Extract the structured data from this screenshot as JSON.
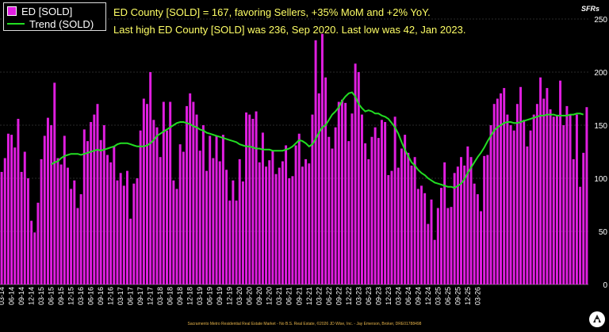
{
  "legend": {
    "bar_label": "ED [SOLD]",
    "line_label": "Trend (SOLD)"
  },
  "headline": {
    "line1": "ED County [SOLD] = 167, favoring Sellers, +35% MoM and +2% YoY.",
    "line2": "Last high ED County [SOLD] was 236, Sep 2020. Last low was 42, Jan 2023."
  },
  "unit_label": "SFRs",
  "footer": "Sacramento Metro Residential Real Estate Market - No B.S. Real Estate, ©2026 JD Wise, Inc. - Jay Emerson, Broker, DRE01788498",
  "colors": {
    "bar": "#e01ee0",
    "trend": "#22dd22",
    "background": "#000000",
    "grid": "#555555",
    "headline": "#ffff66"
  },
  "chart_data": {
    "type": "bar",
    "ylim": [
      0,
      250
    ],
    "yticks": [
      0,
      50,
      100,
      150,
      200,
      250
    ],
    "y_axis_side": "right",
    "grid": true,
    "legend_placement": "top-left",
    "tick_labels": [
      "03-14",
      "06-14",
      "09-14",
      "12-14",
      "03-15",
      "06-15",
      "09-15",
      "12-15",
      "03-16",
      "06-16",
      "09-16",
      "12-16",
      "03-17",
      "06-17",
      "09-17",
      "12-17",
      "03-18",
      "06-18",
      "09-18",
      "12-18",
      "03-19",
      "06-19",
      "09-19",
      "12-19",
      "03-20",
      "06-20",
      "09-20",
      "12-20",
      "03-21",
      "06-21",
      "09-21",
      "12-21",
      "03-22",
      "06-22",
      "09-22",
      "12-22",
      "03-23",
      "06-23",
      "09-23",
      "12-23",
      "03-24",
      "06-24",
      "09-24",
      "12-24",
      "03-25",
      "06-25",
      "09-25",
      "12-25",
      "03-26"
    ],
    "series": [
      {
        "name": "ED [SOLD]",
        "type": "bar",
        "values": [
          106,
          119,
          142,
          141,
          129,
          156,
          106,
          125,
          100,
          60,
          49,
          77,
          118,
          140,
          157,
          150,
          190,
          119,
          113,
          140,
          110,
          90,
          98,
          72,
          85,
          146,
          135,
          153,
          160,
          170,
          136,
          150,
          122,
          115,
          130,
          98,
          105,
          93,
          107,
          62,
          95,
          100,
          145,
          175,
          170,
          200,
          155,
          148,
          120,
          172,
          145,
          172,
          98,
          90,
          132,
          125,
          168,
          180,
          172,
          160,
          126,
          150,
          107,
          140,
          119,
          140,
          116,
          141,
          108,
          79,
          98,
          79,
          118,
          97,
          162,
          160,
          156,
          163,
          115,
          143,
          111,
          117,
          126,
          104,
          110,
          116,
          131,
          100,
          102,
          131,
          142,
          111,
          118,
          114,
          160,
          230,
          180,
          236,
          195,
          139,
          128,
          148,
          172,
          174,
          171,
          135,
          161,
          208,
          200,
          160,
          133,
          118,
          139,
          148,
          138,
          155,
          153,
          103,
          107,
          158,
          110,
          128,
          141,
          124,
          112,
          120,
          90,
          93,
          86,
          57,
          80,
          42,
          72,
          91,
          115,
          72,
          73,
          105,
          111,
          120,
          112,
          130,
          120,
          95,
          85,
          69,
          121,
          122,
          150,
          170,
          175,
          180,
          185,
          160,
          150,
          145,
          170,
          186,
          155,
          130,
          145,
          160,
          170,
          195,
          175,
          185,
          165,
          158,
          159,
          192,
          150,
          168,
          160,
          118,
          160,
          92,
          124,
          167
        ]
      },
      {
        "name": "Trend (SOLD)",
        "type": "line",
        "values": [
          null,
          null,
          null,
          null,
          null,
          null,
          null,
          null,
          null,
          null,
          null,
          null,
          null,
          null,
          null,
          113,
          115,
          116,
          119,
          121,
          122,
          123,
          123,
          123,
          122,
          123,
          124,
          125,
          126,
          127,
          126,
          127,
          128,
          129,
          130,
          132,
          133,
          133,
          133,
          132,
          131,
          130,
          130,
          130,
          131,
          133,
          136,
          140,
          142,
          144,
          146,
          148,
          150,
          152,
          153,
          153,
          152,
          151,
          149,
          148,
          146,
          145,
          143,
          142,
          141,
          140,
          139,
          138,
          137,
          136,
          135,
          134,
          132,
          131,
          130,
          130,
          129,
          128,
          128,
          127,
          127,
          127,
          126,
          126,
          126,
          126,
          127,
          128,
          130,
          133,
          136,
          135,
          133,
          130,
          132,
          137,
          143,
          148,
          150,
          155,
          160,
          163,
          167,
          173,
          177,
          180,
          181,
          177,
          170,
          166,
          163,
          164,
          163,
          161,
          161,
          159,
          158,
          156,
          152,
          148,
          142,
          134,
          127,
          121,
          115,
          112,
          108,
          105,
          103,
          100,
          98,
          96,
          95,
          94,
          93,
          92,
          92,
          91,
          93,
          95,
          99,
          105,
          110,
          115,
          120,
          124,
          129,
          135,
          140,
          145,
          148,
          150,
          152,
          153,
          153,
          152,
          152,
          153,
          154,
          155,
          156,
          157,
          158,
          159,
          159,
          160,
          160,
          160,
          159,
          159,
          159,
          159,
          160,
          160,
          161,
          161,
          160
        ]
      }
    ]
  }
}
